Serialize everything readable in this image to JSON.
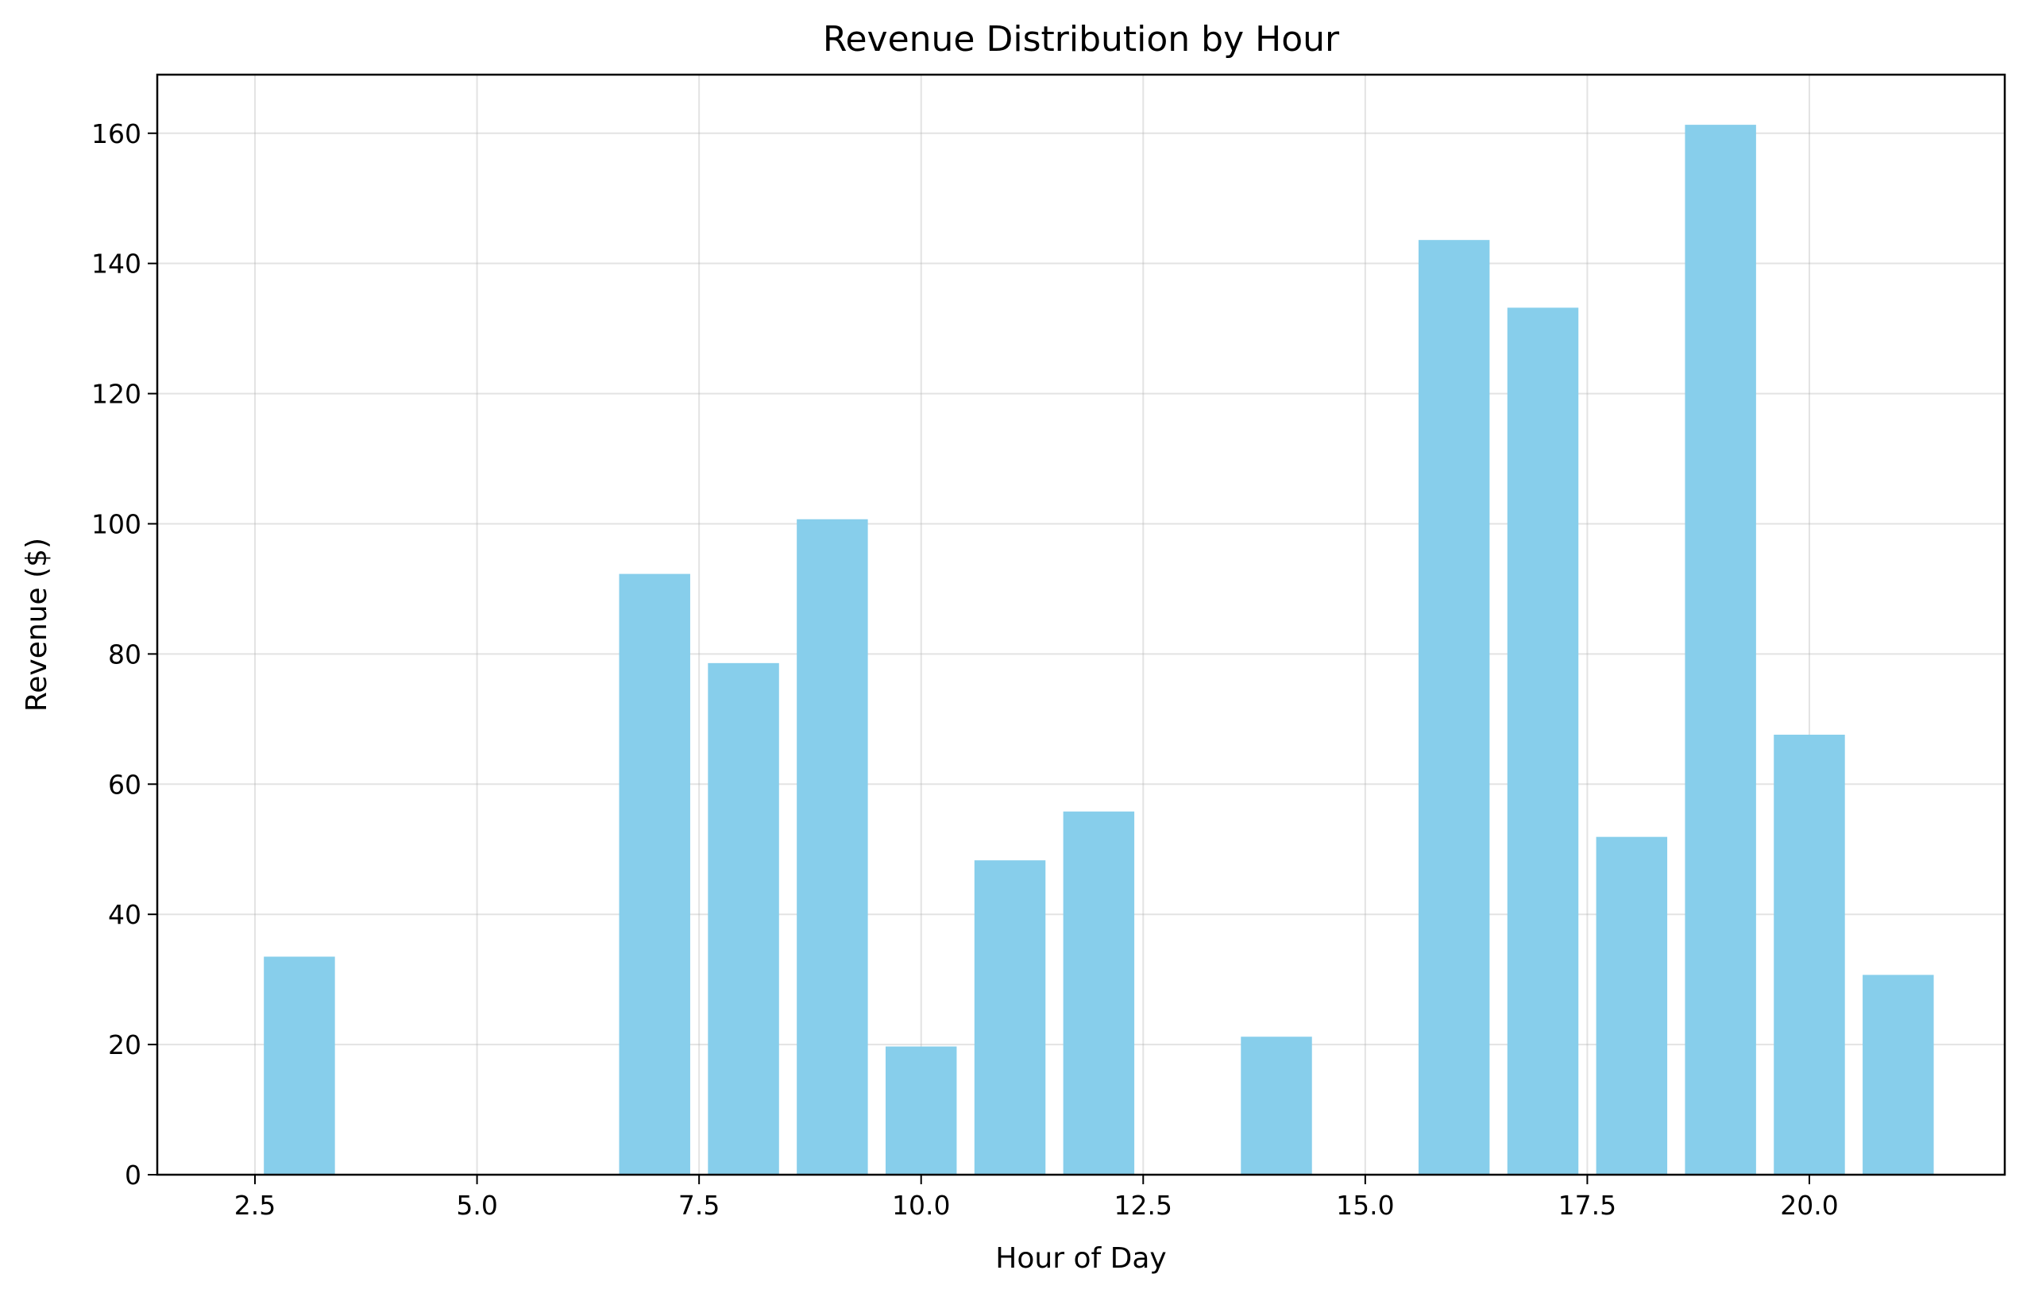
{
  "chart_data": {
    "type": "bar",
    "title": "Revenue Distribution by Hour",
    "xlabel": "Hour of Day",
    "ylabel": "Revenue ($)",
    "x": [
      3,
      7,
      8,
      9,
      10,
      11,
      12,
      14,
      16,
      17,
      18,
      19,
      20,
      21
    ],
    "values": [
      33.5,
      92.3,
      78.6,
      100.7,
      19.7,
      48.3,
      55.8,
      21.2,
      143.6,
      133.2,
      51.9,
      161.3,
      67.6,
      30.7
    ],
    "bar_width": 0.8,
    "xlim": [
      1.4,
      22.2
    ],
    "ylim": [
      0,
      169
    ],
    "xticks": [
      2.5,
      5.0,
      7.5,
      10.0,
      12.5,
      15.0,
      17.5,
      20.0
    ],
    "xtick_labels": [
      "2.5",
      "5.0",
      "7.5",
      "10.0",
      "12.5",
      "15.0",
      "17.5",
      "20.0"
    ],
    "yticks": [
      0,
      20,
      40,
      60,
      80,
      100,
      120,
      140,
      160
    ],
    "ytick_labels": [
      "0",
      "20",
      "40",
      "60",
      "80",
      "100",
      "120",
      "140",
      "160"
    ],
    "grid": true,
    "legend": "none",
    "bar_color": "#87CEEB"
  }
}
